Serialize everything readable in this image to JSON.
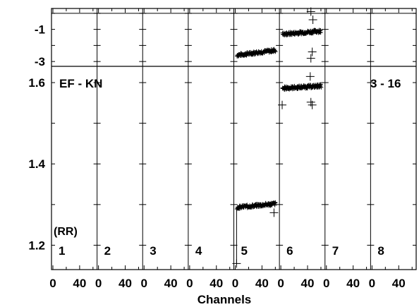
{
  "chart_data": {
    "type": "scatter",
    "title": "",
    "annotations": {
      "baseline": "EF - KN",
      "scan": "3 - 16",
      "polarization": "(RR)"
    },
    "xlabel": "Channels",
    "panel_labels": [
      "1",
      "2",
      "3",
      "4",
      "5",
      "6",
      "7",
      "8"
    ],
    "x_tick_labels": [
      "0",
      "40"
    ],
    "xlim_per_panel": [
      0,
      64
    ],
    "top_axis": {
      "ylim": [
        -3.3,
        0.3
      ],
      "tick_labels": [
        "-1",
        "-3"
      ],
      "ticks": [
        -1,
        -3
      ],
      "reference_line": 0
    },
    "bottom_axis": {
      "ylim": [
        1.14,
        1.64
      ],
      "tick_labels": [
        "1.6",
        "1.4",
        "1.2"
      ],
      "ticks": [
        1.6,
        1.4,
        1.2
      ]
    },
    "series": [
      {
        "panel": 5,
        "axis": "top",
        "x_range": [
          3,
          60
        ],
        "y_start": -2.6,
        "y_end": -2.3,
        "noise": 0.1
      },
      {
        "panel": 6,
        "axis": "top",
        "x_range": [
          3,
          60
        ],
        "y_start": -1.3,
        "y_end": -1.1,
        "noise": 0.1
      },
      {
        "panel": 5,
        "axis": "bottom",
        "x_range": [
          3,
          60
        ],
        "y_start": 1.293,
        "y_end": 1.302,
        "noise": 0.004
      },
      {
        "panel": 6,
        "axis": "bottom",
        "x_range": [
          3,
          60
        ],
        "y_start": 1.586,
        "y_end": 1.592,
        "noise": 0.004
      }
    ],
    "outliers": [
      {
        "panel": 5,
        "axis": "bottom",
        "x": 2,
        "y": 1.155
      },
      {
        "panel": 5,
        "axis": "bottom",
        "x": 58,
        "y": 1.28
      },
      {
        "panel": 6,
        "axis": "top",
        "x": 45,
        "y": 0.1
      },
      {
        "panel": 6,
        "axis": "top",
        "x": 48,
        "y": -0.4
      },
      {
        "panel": 6,
        "axis": "top",
        "x": 47,
        "y": -2.4
      },
      {
        "panel": 6,
        "axis": "top",
        "x": 45,
        "y": -2.8
      },
      {
        "panel": 6,
        "axis": "bottom",
        "x": 2,
        "y": 1.545
      },
      {
        "panel": 6,
        "axis": "bottom",
        "x": 44,
        "y": 1.615
      },
      {
        "panel": 6,
        "axis": "bottom",
        "x": 47,
        "y": 1.545
      },
      {
        "panel": 6,
        "axis": "bottom",
        "x": 45,
        "y": 1.552
      }
    ]
  }
}
